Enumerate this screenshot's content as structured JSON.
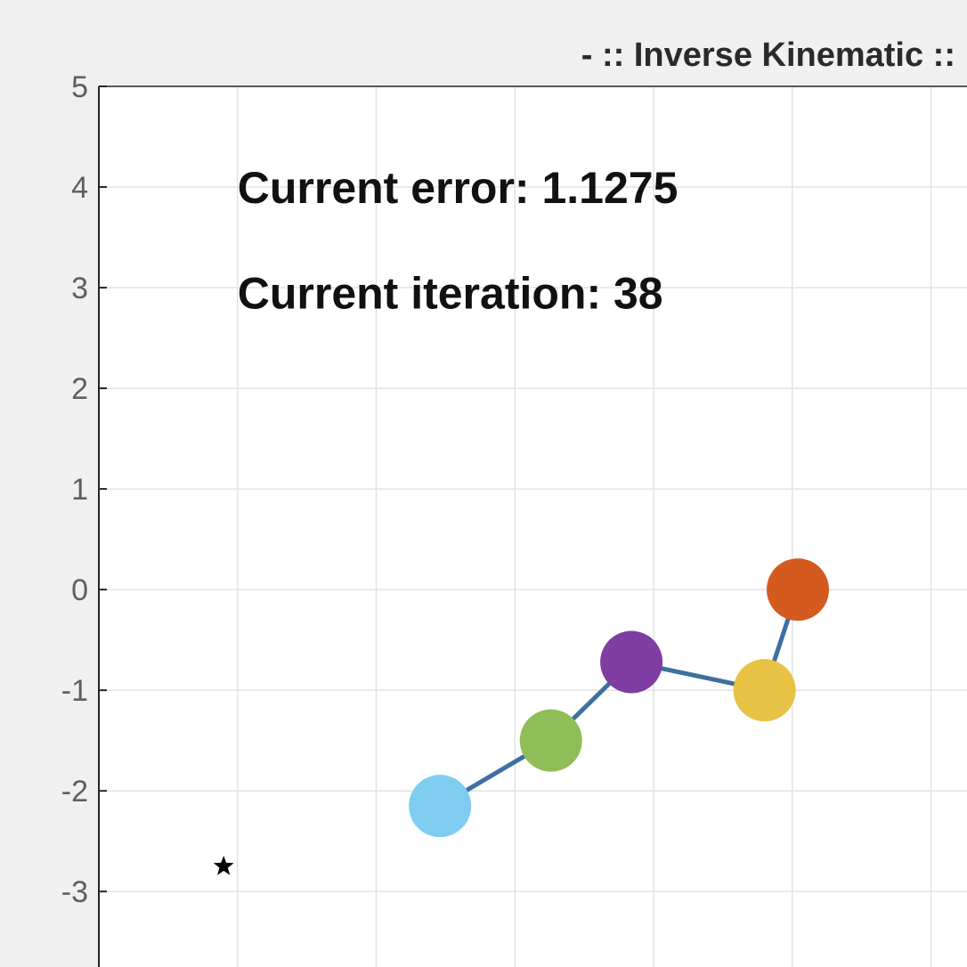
{
  "chart_data": {
    "type": "line",
    "title": "- :: Inverse Kinematic ::",
    "xlabel": "",
    "ylabel": "",
    "ylim": [
      -3.75,
      5
    ],
    "xlim": [
      -1.5,
      1.63
    ],
    "y_ticks": [
      "5",
      "4",
      "3",
      "2",
      "1",
      "0",
      "-1",
      "-2",
      "-3"
    ],
    "x_grid": [
      -1,
      -0.5,
      0,
      0.5,
      1,
      1.5
    ],
    "grid": true,
    "series": [
      {
        "name": "",
        "x": [
          -0.27,
          0.13,
          0.42,
          0.9,
          1.02
        ],
        "y": [
          -2.15,
          -1.5,
          -0.72,
          -1.0,
          0.0
        ],
        "line_color": "#3d6fa0",
        "joint_colors": [
          "#7ecdf0",
          "#8fbe58",
          "#7e3da0",
          "#e8c245",
          "#d45a20"
        ]
      }
    ],
    "target": {
      "x": -1.05,
      "y": -2.75,
      "marker": "star"
    },
    "annotations": [
      {
        "text": "Current error: 1.1275",
        "x": -1.0,
        "y": 4.0
      },
      {
        "text": "Current iteration: 38",
        "x": -1.0,
        "y": 2.95
      }
    ]
  }
}
